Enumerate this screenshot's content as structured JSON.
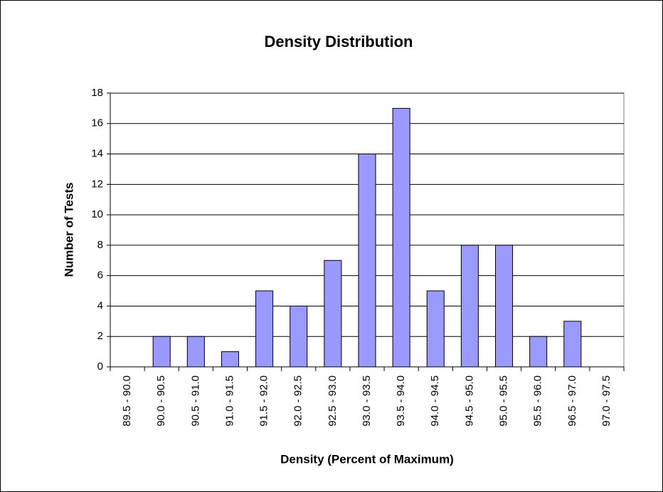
{
  "chart_data": {
    "type": "bar",
    "title": "Density Distribution",
    "x_label": "Density (Percent of Maximum)",
    "y_label": "Number of Tests",
    "categories": [
      "89.5 - 90.0",
      "90.0 - 90.5",
      "90.5 - 91.0",
      "91.0 - 91.5",
      "91.5 - 92.0",
      "92.0 - 92.5",
      "92.5 - 93.0",
      "93.0 - 93.5",
      "93.5 - 94.0",
      "94.0 - 94.5",
      "94.5 - 95.0",
      "95.0 - 95.5",
      "95.5 - 96.0",
      "96.5 - 97.0",
      "97.0 - 97.5"
    ],
    "values": [
      0,
      2,
      2,
      1,
      5,
      4,
      7,
      14,
      17,
      5,
      8,
      8,
      2,
      3,
      0
    ],
    "color": "#9999ff",
    "ylim": [
      0,
      18
    ],
    "yticks": [
      0,
      2,
      4,
      6,
      8,
      10,
      12,
      14,
      16,
      18
    ],
    "grid": true
  }
}
